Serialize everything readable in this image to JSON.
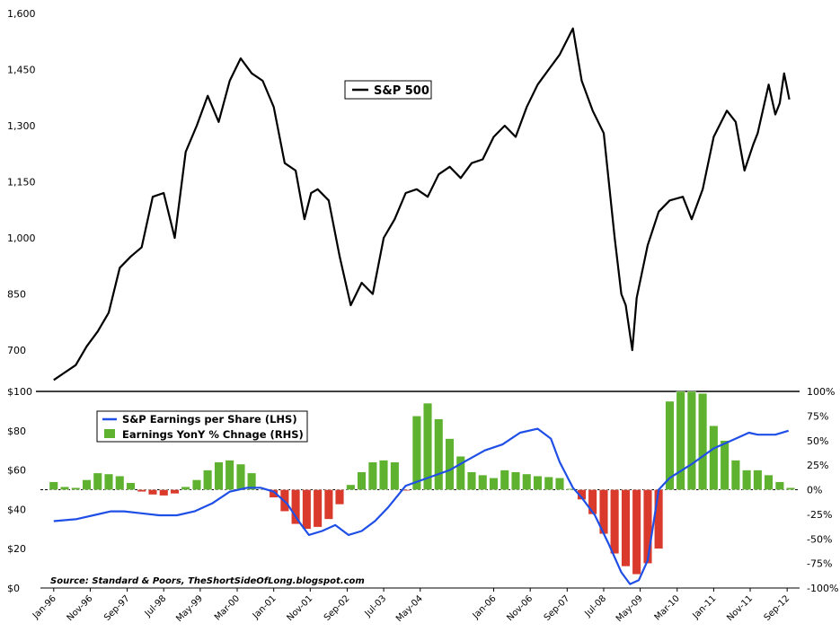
{
  "chart_data": [
    {
      "type": "line",
      "legend": "S&P 500",
      "legend_position": "top-center",
      "ylim": [
        640,
        1600
      ],
      "yticks": [
        "1,600",
        "1,450",
        "1,300",
        "1,150",
        "1,000",
        "850",
        "700"
      ],
      "ytick_values": [
        1600,
        1450,
        1300,
        1150,
        1000,
        850,
        700
      ],
      "series": [
        {
          "name": "S&P 500",
          "color": "#000000",
          "x": [
            1996.0,
            1996.25,
            1996.5,
            1996.75,
            1997.0,
            1997.25,
            1997.5,
            1997.75,
            1998.0,
            1998.25,
            1998.5,
            1998.75,
            1999.0,
            1999.25,
            1999.5,
            1999.75,
            2000.0,
            2000.25,
            2000.5,
            2000.75,
            2001.0,
            2001.25,
            2001.5,
            2001.7,
            2001.85,
            2002.0,
            2002.25,
            2002.5,
            2002.75,
            2003.0,
            2003.25,
            2003.5,
            2003.75,
            2004.0,
            2004.25,
            2004.5,
            2004.75,
            2005.0,
            2005.25,
            2005.5,
            2005.75,
            2006.0,
            2006.25,
            2006.5,
            2006.75,
            2007.0,
            2007.25,
            2007.5,
            2007.8,
            2008.0,
            2008.25,
            2008.5,
            2008.75,
            2008.9,
            2009.0,
            2009.15,
            2009.25,
            2009.5,
            2009.75,
            2010.0,
            2010.3,
            2010.5,
            2010.75,
            2011.0,
            2011.3,
            2011.5,
            2011.7,
            2011.9,
            2012.0,
            2012.25,
            2012.4,
            2012.5,
            2012.6,
            2012.72
          ],
          "y": [
            620,
            640,
            660,
            710,
            750,
            800,
            920,
            950,
            975,
            1110,
            1120,
            1000,
            1230,
            1300,
            1380,
            1310,
            1420,
            1480,
            1440,
            1420,
            1350,
            1200,
            1180,
            1050,
            1120,
            1130,
            1100,
            950,
            820,
            880,
            850,
            1000,
            1050,
            1120,
            1130,
            1110,
            1170,
            1190,
            1160,
            1200,
            1210,
            1270,
            1300,
            1270,
            1350,
            1410,
            1450,
            1490,
            1560,
            1420,
            1340,
            1280,
            1000,
            850,
            820,
            700,
            840,
            980,
            1070,
            1100,
            1110,
            1050,
            1130,
            1270,
            1340,
            1310,
            1180,
            1250,
            1280,
            1410,
            1330,
            1360,
            1440,
            1370
          ]
        }
      ]
    },
    {
      "type": "bar",
      "legend_position": "top-left",
      "xticks": [
        "Jan-96",
        "Nov-96",
        "Sep-97",
        "Jul-98",
        "May-99",
        "Mar-00",
        "Jan-01",
        "Nov-01",
        "Sep-02",
        "Jul-03",
        "May-04",
        "Jan-06",
        "Nov-06",
        "Sep-07",
        "Jul-08",
        "May-09",
        "Mar-10",
        "Jan-11",
        "Nov-11",
        "Sep-12"
      ],
      "xtick_values": [
        1996.0,
        1996.83,
        1997.67,
        1998.5,
        1999.33,
        2000.17,
        2001.0,
        2001.83,
        2002.67,
        2003.5,
        2004.33,
        2006.0,
        2006.83,
        2007.67,
        2008.5,
        2009.33,
        2010.17,
        2011.0,
        2011.83,
        2012.67
      ],
      "xlim": [
        1995.8,
        2012.85
      ],
      "left_axis": {
        "ticks": [
          "$100",
          "$80",
          "$60",
          "$40",
          "$20",
          "$0"
        ],
        "values": [
          100,
          80,
          60,
          40,
          20,
          0
        ],
        "range": [
          0,
          100
        ]
      },
      "right_axis": {
        "ticks": [
          "100%",
          "75%",
          "50%",
          "25%",
          "0%",
          "-25%",
          "-50%",
          "-75%",
          "-100%"
        ],
        "values": [
          100,
          75,
          50,
          25,
          0,
          -25,
          -50,
          -75,
          -100
        ],
        "range": [
          -100,
          100
        ]
      },
      "source_note": "Source: Standard & Poors, TheShortSideOfLong.blogspot.com",
      "series": [
        {
          "name": "S&P Earnings per Share (LHS)",
          "axis": "left",
          "type": "line",
          "color": "#1f4fe6",
          "x": [
            1996.0,
            1996.5,
            1996.9,
            1997.3,
            1997.6,
            1998.0,
            1998.4,
            1998.8,
            1999.2,
            1999.6,
            2000.0,
            2000.4,
            2000.7,
            2001.0,
            2001.3,
            2001.6,
            2001.8,
            2002.1,
            2002.4,
            2002.7,
            2003.0,
            2003.3,
            2003.6,
            2004.0,
            2004.5,
            2005.0,
            2005.4,
            2005.8,
            2006.2,
            2006.6,
            2007.0,
            2007.3,
            2007.5,
            2007.8,
            2008.0,
            2008.3,
            2008.6,
            2008.9,
            2009.1,
            2009.3,
            2009.5,
            2009.75,
            2010.0,
            2010.5,
            2011.0,
            2011.5,
            2011.8,
            2012.0,
            2012.4,
            2012.7
          ],
          "y": [
            34,
            35,
            37,
            39,
            39,
            38,
            37,
            37,
            39,
            43,
            49,
            51,
            51,
            49,
            43,
            33,
            27,
            29,
            32,
            27,
            29,
            34,
            41,
            52,
            56,
            60,
            65,
            70,
            73,
            79,
            81,
            76,
            64,
            51,
            46,
            37,
            23,
            8,
            2,
            4,
            14,
            50,
            56,
            63,
            71,
            76,
            79,
            78,
            78,
            80
          ]
        },
        {
          "name": "Earnings YonY % Chnage (RHS)",
          "axis": "right",
          "type": "bar",
          "color_positive": "#5fb230",
          "color_negative": "#d93a2b",
          "x": [
            1996.0,
            1996.25,
            1996.5,
            1996.75,
            1997.0,
            1997.25,
            1997.5,
            1997.75,
            1998.0,
            1998.25,
            1998.5,
            1998.75,
            1999.0,
            1999.25,
            1999.5,
            1999.75,
            2000.0,
            2000.25,
            2000.5,
            2000.75,
            2001.0,
            2001.25,
            2001.5,
            2001.75,
            2002.0,
            2002.25,
            2002.5,
            2002.75,
            2003.0,
            2003.25,
            2003.5,
            2003.75,
            2004.0,
            2004.25,
            2004.5,
            2004.75,
            2005.0,
            2005.25,
            2005.5,
            2005.75,
            2006.0,
            2006.25,
            2006.5,
            2006.75,
            2007.0,
            2007.25,
            2007.5,
            2007.75,
            2008.0,
            2008.25,
            2008.5,
            2008.75,
            2009.0,
            2009.25,
            2009.5,
            2009.75,
            2010.0,
            2010.25,
            2010.5,
            2010.75,
            2011.0,
            2011.25,
            2011.5,
            2011.75,
            2012.0,
            2012.25,
            2012.5,
            2012.75
          ],
          "y": [
            8,
            3,
            2,
            10,
            17,
            16,
            14,
            7,
            -2,
            -5,
            -6,
            -4,
            3,
            10,
            20,
            28,
            30,
            26,
            17,
            0,
            -8,
            -22,
            -35,
            -40,
            -38,
            -30,
            -15,
            5,
            18,
            28,
            30,
            28,
            -1,
            75,
            88,
            72,
            52,
            34,
            18,
            15,
            12,
            20,
            18,
            16,
            14,
            13,
            12,
            1,
            -10,
            -25,
            -45,
            -65,
            -78,
            -86,
            -75,
            -60,
            90,
            100,
            100,
            98,
            65,
            50,
            30,
            20,
            20,
            15,
            8,
            2
          ]
        }
      ]
    }
  ]
}
